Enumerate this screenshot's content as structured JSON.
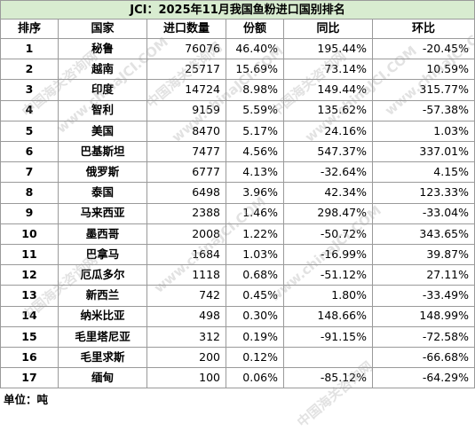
{
  "table": {
    "title": "JCI：2025年11月我国鱼粉进口国别排名",
    "header": [
      "排序",
      "国家",
      "进口数量",
      "份额",
      "同比",
      "环比"
    ],
    "rows": [
      [
        "1",
        "秘鲁",
        "76076",
        "46.40%",
        "195.44%",
        "-20.45%"
      ],
      [
        "2",
        "越南",
        "25717",
        "15.69%",
        "73.14%",
        "10.59%"
      ],
      [
        "3",
        "印度",
        "14724",
        "8.98%",
        "149.44%",
        "315.77%"
      ],
      [
        "4",
        "智利",
        "9159",
        "5.59%",
        "135.62%",
        "-57.38%"
      ],
      [
        "5",
        "美国",
        "8470",
        "5.17%",
        "24.16%",
        "1.03%"
      ],
      [
        "6",
        "巴基斯坦",
        "7477",
        "4.56%",
        "547.37%",
        "337.01%"
      ],
      [
        "7",
        "俄罗斯",
        "6777",
        "4.13%",
        "-32.64%",
        "4.15%"
      ],
      [
        "8",
        "泰国",
        "6498",
        "3.96%",
        "42.34%",
        "123.33%"
      ],
      [
        "9",
        "马来西亚",
        "2388",
        "1.46%",
        "298.47%",
        "-33.04%"
      ],
      [
        "10",
        "墨西哥",
        "2008",
        "1.22%",
        "-50.72%",
        "343.65%"
      ],
      [
        "11",
        "巴拿马",
        "1684",
        "1.03%",
        "-16.99%",
        "39.87%"
      ],
      [
        "12",
        "厄瓜多尔",
        "1118",
        "0.68%",
        "-51.12%",
        "27.11%"
      ],
      [
        "13",
        "新西兰",
        "742",
        "0.45%",
        "1.80%",
        "-33.49%"
      ],
      [
        "14",
        "纳米比亚",
        "498",
        "0.30%",
        "148.66%",
        "148.99%"
      ],
      [
        "15",
        "毛里塔尼亚",
        "312",
        "0.19%",
        "-91.15%",
        "-72.58%"
      ],
      [
        "16",
        "毛里求斯",
        "200",
        "0.12%",
        null,
        "-66.68%"
      ],
      [
        "17",
        "缅甸",
        "100",
        "0.06%",
        "-85.12%",
        "-64.29%"
      ]
    ],
    "footer": "单位：吨"
  },
  "watermark": {
    "name": "中国海关咨询网",
    "url": "www.chinaJCI.COM"
  }
}
